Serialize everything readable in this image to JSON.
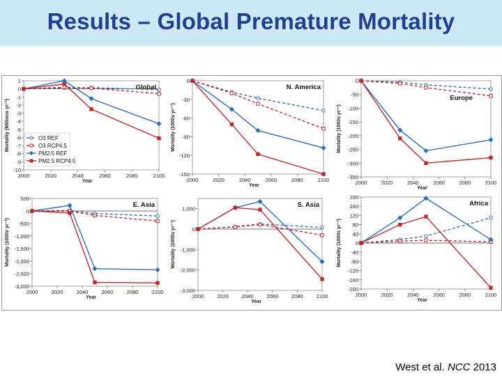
{
  "slide": {
    "title": "Results – Global Premature Mortality",
    "citation_authors": "West et al.",
    "citation_journal": "NCC",
    "citation_year": "2013"
  },
  "colors": {
    "blue": "#2f6eb5",
    "red": "#c0282d",
    "title": "#1f3f8f",
    "band": "#cfe8f7"
  },
  "chart_data": [
    {
      "type": "line",
      "title": "Global",
      "xlabel": "Year",
      "ylabel": "Mortality (Millions yr⁻¹)",
      "xlim": [
        2000,
        2100
      ],
      "ylim": [
        -10,
        1
      ],
      "xticks": [
        2000,
        2020,
        2040,
        2060,
        2080,
        2100
      ],
      "yticks": [
        1,
        0,
        -1,
        -2,
        -3,
        -4,
        -5,
        -6,
        -7,
        -8,
        -9,
        -10
      ],
      "ytick_labels": [
        "1",
        "0",
        "-1",
        "-2",
        "-3",
        "-4",
        "-5",
        "-6",
        "-7",
        "-8",
        "-9",
        "-10"
      ],
      "xtick_labels": [
        "2000",
        "2020",
        "2040",
        "2060",
        "2080",
        "2100"
      ],
      "legend": [
        "O3 REF",
        "O3 RCP4.5",
        "PM2.5 REF",
        "PM2.5 RCP4.5"
      ],
      "x": [
        2000,
        2030,
        2050,
        2100
      ],
      "series": [
        {
          "name": "O3 REF",
          "values": [
            0,
            0.1,
            0.15,
            -0.1
          ]
        },
        {
          "name": "O3 RCP4.5",
          "values": [
            0,
            0.2,
            0.1,
            -0.6
          ]
        },
        {
          "name": "PM2.5 REF",
          "values": [
            0,
            1.0,
            -1.2,
            -4.3
          ]
        },
        {
          "name": "PM2.5 RCP4.5",
          "values": [
            0,
            0.6,
            -2.5,
            -6.1
          ]
        }
      ]
    },
    {
      "type": "line",
      "title": "N. America",
      "xlabel": "Year",
      "ylabel": "Mortality (1000s yr⁻¹)",
      "xlim": [
        2000,
        2100
      ],
      "ylim": [
        -150,
        0
      ],
      "xticks": [
        2000,
        2020,
        2040,
        2060,
        2080,
        2100
      ],
      "yticks": [
        0,
        -30,
        -60,
        -90,
        -120,
        -150
      ],
      "ytick_labels": [
        "0",
        "-30",
        "-60",
        "-90",
        "-120",
        "-150"
      ],
      "xtick_labels": [
        "2000",
        "2020",
        "2040",
        "2060",
        "2080",
        "2100"
      ],
      "x": [
        2000,
        2030,
        2050,
        2100
      ],
      "series": [
        {
          "name": "O3 REF",
          "values": [
            0,
            -18,
            -28,
            -48
          ]
        },
        {
          "name": "O3 RCP4.5",
          "values": [
            0,
            -20,
            -37,
            -77
          ]
        },
        {
          "name": "PM2.5 REF",
          "values": [
            0,
            -46,
            -80,
            -108
          ]
        },
        {
          "name": "PM2.5 RCP4.5",
          "values": [
            0,
            -70,
            -118,
            -150
          ]
        }
      ]
    },
    {
      "type": "line",
      "title": "Europe",
      "xlabel": "Year",
      "ylabel": "Mortality (1000s yr⁻¹)",
      "xlim": [
        2000,
        2100
      ],
      "ylim": [
        -350,
        0
      ],
      "xticks": [
        2000,
        2020,
        2040,
        2060,
        2080,
        2100
      ],
      "yticks": [
        0,
        -50,
        -100,
        -150,
        -200,
        -250,
        -300,
        -350
      ],
      "ytick_labels": [
        "0",
        "-50",
        "-100",
        "-150",
        "-200",
        "-250",
        "-300",
        "-350"
      ],
      "xtick_labels": [
        "2000",
        "2020",
        "2040",
        "2060",
        "2080",
        "2100"
      ],
      "x": [
        2000,
        2030,
        2050,
        2100
      ],
      "series": [
        {
          "name": "O3 REF",
          "values": [
            0,
            -5,
            -15,
            -30
          ]
        },
        {
          "name": "O3 RCP4.5",
          "values": [
            0,
            -10,
            -25,
            -55
          ]
        },
        {
          "name": "PM2.5 REF",
          "values": [
            0,
            -180,
            -255,
            -215
          ]
        },
        {
          "name": "PM2.5 RCP4.5",
          "values": [
            0,
            -210,
            -300,
            -280
          ]
        }
      ]
    },
    {
      "type": "line",
      "title": "E. Asia",
      "xlabel": "Year",
      "ylabel": "Mortality (1000s yr⁻¹)",
      "xlim": [
        2000,
        2100
      ],
      "ylim": [
        -3000,
        500
      ],
      "xticks": [
        2000,
        2020,
        2040,
        2060,
        2080,
        2100
      ],
      "yticks": [
        500,
        0,
        -500,
        -1000,
        -1500,
        -2000,
        -2500,
        -3000
      ],
      "ytick_labels": [
        "500",
        "0",
        "-500",
        "-1,000",
        "-1,500",
        "-2,000",
        "-2,500",
        "-3,000"
      ],
      "xtick_labels": [
        "2000",
        "2020",
        "2040",
        "2060",
        "2080",
        "2100"
      ],
      "x": [
        2000,
        2030,
        2050,
        2100
      ],
      "series": [
        {
          "name": "O3 REF",
          "values": [
            0,
            20,
            -100,
            -200
          ]
        },
        {
          "name": "O3 RCP4.5",
          "values": [
            0,
            0,
            -180,
            -400
          ]
        },
        {
          "name": "PM2.5 REF",
          "values": [
            0,
            220,
            -2300,
            -2350
          ]
        },
        {
          "name": "PM2.5 RCP4.5",
          "values": [
            0,
            -80,
            -2850,
            -2870
          ]
        }
      ]
    },
    {
      "type": "line",
      "title": "S. Asia",
      "xlabel": "Year",
      "ylabel": "Mortality (1000s yr⁻¹)",
      "xlim": [
        2000,
        2100
      ],
      "ylim": [
        -3000,
        1500
      ],
      "xticks": [
        2000,
        2020,
        2040,
        2060,
        2080,
        2100
      ],
      "yticks": [
        1000,
        0,
        -1000,
        -2000,
        -3000
      ],
      "ytick_labels": [
        "1,000",
        "0",
        "-1,000",
        "-2,000",
        "-3,000"
      ],
      "xtick_labels": [
        "2000",
        "2020",
        "2040",
        "2060",
        "2080",
        "2100"
      ],
      "x": [
        2000,
        2030,
        2050,
        2100
      ],
      "series": [
        {
          "name": "O3 REF",
          "values": [
            0,
            120,
            250,
            80
          ]
        },
        {
          "name": "O3 RCP4.5",
          "values": [
            0,
            100,
            220,
            -300
          ]
        },
        {
          "name": "PM2.5 REF",
          "values": [
            0,
            1050,
            1350,
            -1600
          ]
        },
        {
          "name": "PM2.5 RCP4.5",
          "values": [
            0,
            1050,
            950,
            -2450
          ]
        }
      ]
    },
    {
      "type": "line",
      "title": "Africa",
      "xlabel": "Year",
      "ylabel": "Mortality (1000s yr⁻¹)",
      "xlim": [
        2000,
        2100
      ],
      "ylim": [
        -200,
        200
      ],
      "xticks": [
        2000,
        2020,
        2040,
        2060,
        2080,
        2100
      ],
      "yticks": [
        200,
        160,
        120,
        80,
        40,
        0,
        -40,
        -80,
        -120,
        -160,
        -200
      ],
      "ytick_labels": [
        "200",
        "160",
        "120",
        "80",
        "40",
        "0",
        "-40",
        "-80",
        "-120",
        "-160",
        "-200"
      ],
      "xtick_labels": [
        "2000",
        "2020",
        "2040",
        "2060",
        "2080",
        "2100"
      ],
      "x": [
        2000,
        2030,
        2050,
        2100
      ],
      "series": [
        {
          "name": "O3 REF",
          "values": [
            0,
            15,
            30,
            110
          ]
        },
        {
          "name": "O3 RCP4.5",
          "values": [
            0,
            8,
            12,
            5
          ]
        },
        {
          "name": "PM2.5 REF",
          "values": [
            0,
            110,
            195,
            15
          ]
        },
        {
          "name": "PM2.5 RCP4.5",
          "values": [
            0,
            80,
            115,
            -195
          ]
        }
      ]
    }
  ]
}
